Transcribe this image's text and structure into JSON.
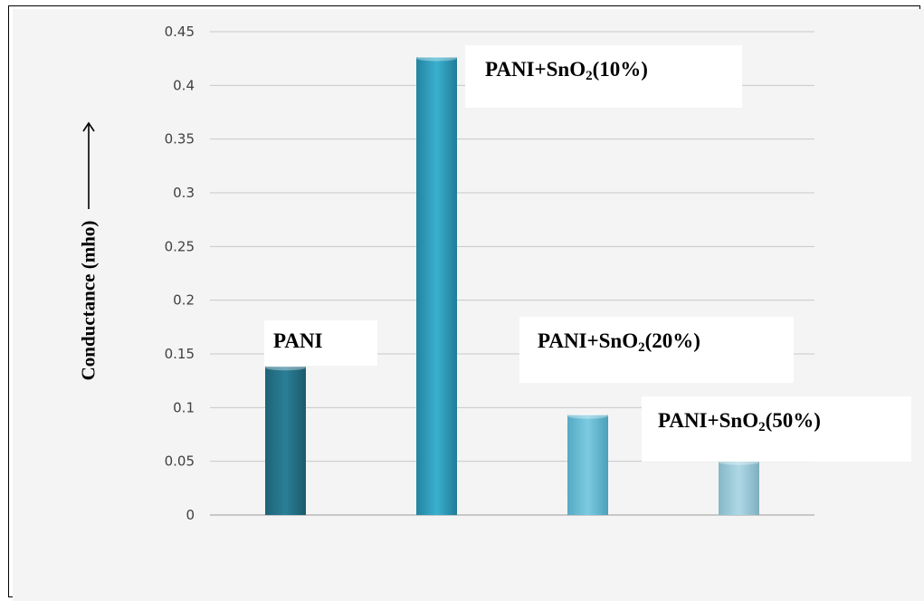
{
  "chart_data": {
    "type": "bar",
    "categories": [
      "PANI",
      "PANI+SnO2(10%)",
      "PANI+SnO2(20%)",
      "PANI+SnO2(50%)"
    ],
    "values": [
      0.138,
      0.426,
      0.093,
      0.05
    ],
    "title": "",
    "xlabel": "",
    "ylabel": "Conductance (mho)",
    "ylim": [
      0,
      0.45
    ],
    "yticks": [
      "0",
      "0.05",
      "0.1",
      "0.15",
      "0.2",
      "0.25",
      "0.3",
      "0.35",
      "0.4",
      "0.45"
    ],
    "grid": true,
    "legend": "none",
    "bar_colors": [
      "#2a7f96",
      "#2ea0c0",
      "#6cc0da",
      "#9ccbda"
    ],
    "labels": [
      {
        "base": "PANI",
        "sub": "",
        "tail": ""
      },
      {
        "base": "PANI+SnO",
        "sub": "2",
        "tail": "(10%)"
      },
      {
        "base": "PANI+SnO",
        "sub": "2",
        "tail": "(20%)"
      },
      {
        "base": "PANI+SnO",
        "sub": "2",
        "tail": "(50%)"
      }
    ]
  }
}
